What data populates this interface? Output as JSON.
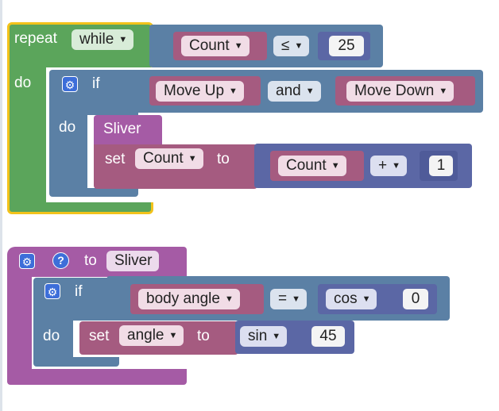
{
  "repeat_block": {
    "repeat_label": "repeat",
    "mode": "while",
    "do_label": "do",
    "condition": {
      "variable": "Count",
      "operator": "≤",
      "value": "25"
    }
  },
  "if_block_1": {
    "if_label": "if",
    "do_label": "do",
    "condition": {
      "left": "Move Up",
      "operator": "and",
      "right": "Move Down"
    }
  },
  "sliver_call": {
    "label": "Sliver"
  },
  "set_count": {
    "set_label": "set",
    "variable": "Count",
    "to_label": "to",
    "expr": {
      "left": "Count",
      "operator": "+",
      "right": "1"
    }
  },
  "procedure": {
    "to_label": "to",
    "name": "Sliver"
  },
  "if_block_2": {
    "if_label": "if",
    "do_label": "do",
    "condition": {
      "left": "body angle",
      "operator": "=",
      "func": "cos",
      "value": "0"
    }
  },
  "set_angle": {
    "set_label": "set",
    "variable": "angle",
    "to_label": "to",
    "func": "sin",
    "value": "45"
  },
  "icons": {
    "gear": "⚙",
    "help": "?",
    "dropdown_arrow": "▼"
  },
  "colors": {
    "loop": "#5ba55b",
    "logic": "#5b80a5",
    "variables": "#a55b80",
    "math": "#5b67a5",
    "procedures": "#a55ba5",
    "selection_outline": "#f2c21b"
  }
}
